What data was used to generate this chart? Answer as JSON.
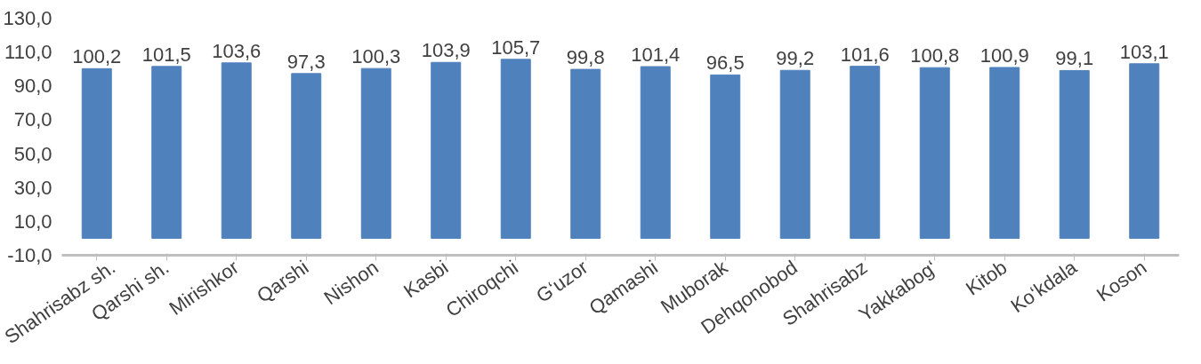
{
  "chart_data": {
    "type": "bar",
    "categories": [
      "Shahrisabz sh.",
      "Qarshi sh.",
      "Mirishkor",
      "Qarshi",
      "Nishon",
      "Kasbi",
      "Chiroqchi",
      "G‘uzor",
      "Qamashi",
      "Muborak",
      "Dehqonobod",
      "Shahrisabz",
      "Yakkabog‘",
      "Kitob",
      "Ko‘kdala",
      "Koson"
    ],
    "values": [
      100.2,
      101.5,
      103.6,
      97.3,
      100.3,
      103.9,
      105.7,
      99.8,
      101.4,
      96.5,
      99.2,
      101.6,
      100.8,
      100.9,
      99.1,
      103.1
    ],
    "value_labels": [
      "100,2",
      "101,5",
      "103,6",
      "97,3",
      "100,3",
      "103,9",
      "105,7",
      "99,8",
      "101,4",
      "96,5",
      "99,2",
      "101,6",
      "100,8",
      "100,9",
      "99,1",
      "103,1"
    ],
    "color": "#4f81bd",
    "ylim": [
      -10,
      130
    ],
    "yticks": [
      {
        "value": -10,
        "label": "-10,0"
      },
      {
        "value": 10,
        "label": "10,0"
      },
      {
        "value": 30,
        "label": "30,0"
      },
      {
        "value": 50,
        "label": "50,0"
      },
      {
        "value": 70,
        "label": "70,0"
      },
      {
        "value": 90,
        "label": "90,0"
      },
      {
        "value": 110,
        "label": "110,0"
      },
      {
        "value": 130,
        "label": "130,0"
      }
    ],
    "grid": false
  }
}
